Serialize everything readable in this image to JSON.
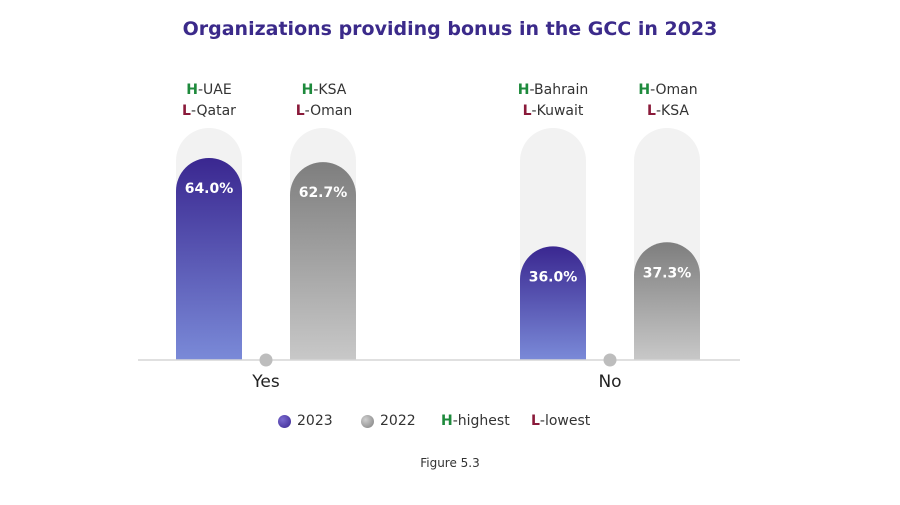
{
  "chart_data": {
    "type": "bar",
    "title": "Organizations providing bonus in the GCC in 2023",
    "categories": [
      "Yes",
      "No"
    ],
    "series": [
      {
        "name": "2023",
        "values": [
          64.0,
          36.0
        ],
        "labels": [
          "64.0%",
          "36.0%"
        ],
        "color": "#3f2d93"
      },
      {
        "name": "2022",
        "values": [
          62.7,
          37.3
        ],
        "labels": [
          "62.7%",
          "37.3%"
        ],
        "color": "#888888"
      }
    ],
    "ylim": [
      0,
      100
    ],
    "grid": false,
    "legend": "bottom",
    "annotations": [
      {
        "h_label": "H",
        "h_text": "-UAE",
        "l_label": "L",
        "l_text": "-Qatar"
      },
      {
        "h_label": "H",
        "h_text": "-KSA",
        "l_label": "L",
        "l_text": "-Oman"
      },
      {
        "h_label": "H",
        "h_text": "-Bahrain",
        "l_label": "L",
        "l_text": "-Kuwait"
      },
      {
        "h_label": "H",
        "h_text": "-Oman",
        "l_label": "L",
        "l_text": "-KSA"
      }
    ]
  },
  "legend": {
    "items": [
      {
        "label": "2023"
      },
      {
        "label": "2022"
      }
    ],
    "highlight_h": "H",
    "highlight_h_text": "-highest",
    "highlight_l": "L",
    "highlight_l_text": "-lowest"
  },
  "caption": "Figure 5.3",
  "colors": {
    "title": "#3b2a8a",
    "highest": "#1e8a3c",
    "lowest": "#8a1a3a",
    "track": "#f2f2f2"
  }
}
